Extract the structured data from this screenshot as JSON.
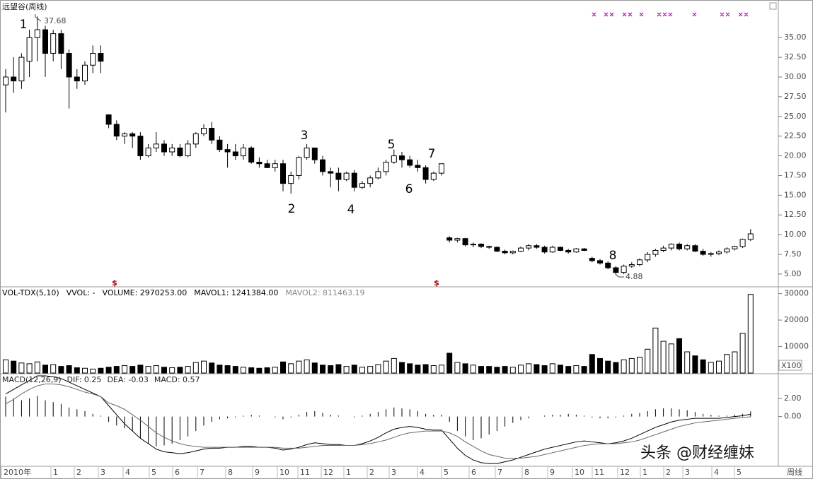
{
  "chart_data": [
    {
      "type": "candlestick",
      "title": "远望谷(周线)",
      "candles": [
        [
          29,
          31,
          25.5,
          30
        ],
        [
          30,
          32.5,
          28,
          29.5
        ],
        [
          29.5,
          33,
          28.5,
          32.5
        ],
        [
          32,
          36,
          30,
          35
        ],
        [
          35,
          37.68,
          32,
          36
        ],
        [
          36,
          36.5,
          30,
          33
        ],
        [
          33,
          36,
          32,
          35.5
        ],
        [
          35.5,
          36,
          31,
          33
        ],
        [
          33,
          33.5,
          26,
          30
        ],
        [
          30,
          31,
          28.5,
          29.5
        ],
        [
          29.5,
          32,
          29,
          31.5
        ],
        [
          31.5,
          34,
          30.5,
          33
        ],
        [
          33,
          34,
          30.5,
          32
        ],
        [
          25.2,
          25.3,
          23.5,
          24
        ],
        [
          24,
          24.5,
          22,
          22.5
        ],
        [
          22.5,
          23,
          21.5,
          22.8
        ],
        [
          22.8,
          23,
          21,
          22.5
        ],
        [
          22.5,
          23,
          19.5,
          20
        ],
        [
          20,
          21.5,
          19.8,
          21
        ],
        [
          21,
          23,
          20.5,
          21.5
        ],
        [
          21.5,
          22,
          20,
          20.5
        ],
        [
          20.5,
          21.5,
          20,
          21
        ],
        [
          21,
          21.5,
          19.8,
          20
        ],
        [
          20,
          22,
          19.8,
          21.5
        ],
        [
          21.5,
          23,
          21,
          22.8
        ],
        [
          22.8,
          24,
          22.5,
          23.5
        ],
        [
          23.5,
          24.3,
          21.5,
          22
        ],
        [
          22,
          22.5,
          20.5,
          20.8
        ],
        [
          20.8,
          21.5,
          18.5,
          20.5
        ],
        [
          20.5,
          21.5,
          19.5,
          20
        ],
        [
          20,
          21.5,
          19.5,
          21
        ],
        [
          21,
          21.2,
          19,
          19.2
        ],
        [
          19.2,
          19.8,
          18.5,
          19
        ],
        [
          19,
          19.5,
          18.5,
          18.5
        ],
        [
          18.5,
          19.5,
          18,
          19
        ],
        [
          19,
          19.5,
          15.5,
          16.5
        ],
        [
          16.5,
          18,
          15.2,
          17.5
        ],
        [
          17.5,
          20,
          17,
          19.8
        ],
        [
          19.8,
          21.5,
          19.5,
          21
        ],
        [
          21,
          21,
          19,
          19.5
        ],
        [
          19.5,
          20,
          17.5,
          18
        ],
        [
          18,
          18.5,
          16,
          17.8
        ],
        [
          17.8,
          18.5,
          15.5,
          17
        ],
        [
          17,
          18,
          16.8,
          17.8
        ],
        [
          17.8,
          18.2,
          15.5,
          16
        ],
        [
          16,
          16.8,
          15.8,
          16.5
        ],
        [
          16.5,
          17.5,
          16,
          17.2
        ],
        [
          17.2,
          18.5,
          17,
          18
        ],
        [
          18,
          19.5,
          17.5,
          19.2
        ],
        [
          19.2,
          20.8,
          19,
          20
        ],
        [
          20,
          20.5,
          18.5,
          19.5
        ],
        [
          19.5,
          20,
          18.5,
          18.8
        ],
        [
          18.8,
          19.5,
          18,
          18.5
        ],
        [
          18.5,
          18.8,
          16.5,
          17
        ],
        [
          17,
          18,
          16.8,
          17.8
        ],
        [
          17.8,
          19,
          17.5,
          19
        ],
        [
          9.6,
          9.8,
          9,
          9.3
        ],
        [
          9.3,
          9.6,
          9,
          9.5
        ],
        [
          9.5,
          9.6,
          8.5,
          8.7
        ],
        [
          8.7,
          9,
          8.4,
          8.8
        ],
        [
          8.8,
          8.9,
          8.3,
          8.5
        ],
        [
          8.5,
          8.6,
          8.2,
          8.4
        ],
        [
          8.4,
          8.5,
          7.8,
          7.9
        ],
        [
          7.9,
          8.1,
          7.5,
          7.7
        ],
        [
          7.7,
          8,
          7.5,
          7.9
        ],
        [
          7.9,
          8.5,
          7.8,
          8.3
        ],
        [
          8.3,
          8.8,
          8,
          8.6
        ],
        [
          8.6,
          8.8,
          8.2,
          8.4
        ],
        [
          8.4,
          8.6,
          7.6,
          7.8
        ],
        [
          7.8,
          8.6,
          7.7,
          8.4
        ],
        [
          8.4,
          8.5,
          7.9,
          8
        ],
        [
          8,
          8.2,
          7.6,
          7.8
        ],
        [
          7.8,
          8.3,
          7.7,
          8.2
        ],
        [
          8.2,
          8.3,
          7.9,
          8
        ],
        [
          7,
          7.2,
          6.5,
          6.7
        ],
        [
          6.7,
          6.9,
          6.2,
          6.4
        ],
        [
          6.4,
          6.6,
          5.6,
          5.8
        ],
        [
          5.8,
          6,
          4.88,
          5.2
        ],
        [
          5.2,
          6.2,
          5,
          6
        ],
        [
          6,
          6.5,
          5.8,
          6.2
        ],
        [
          6.2,
          7,
          6,
          6.8
        ],
        [
          6.8,
          7.8,
          6.5,
          7.5
        ],
        [
          7.5,
          8.2,
          7.2,
          8
        ],
        [
          8,
          8.6,
          7.8,
          8.3
        ],
        [
          8.3,
          8.9,
          8,
          8.8
        ],
        [
          8.8,
          9,
          8,
          8.2
        ],
        [
          8.2,
          8.8,
          8,
          8.6
        ],
        [
          8.6,
          8.8,
          7.8,
          7.9
        ],
        [
          7.9,
          8.2,
          7.3,
          7.5
        ],
        [
          7.5,
          7.8,
          7.2,
          7.6
        ],
        [
          7.6,
          8,
          7.4,
          7.8
        ],
        [
          7.8,
          8.4,
          7.6,
          8.2
        ],
        [
          8.2,
          8.6,
          8,
          8.5
        ],
        [
          8.5,
          9.5,
          8.3,
          9.4
        ],
        [
          9.4,
          10.7,
          9.2,
          10.1
        ]
      ],
      "ylim": [
        3.38,
        39.77
      ],
      "yticks": [
        {
          "value": 5,
          "label": "5.00"
        },
        {
          "value": 7.5,
          "label": "7.50"
        },
        {
          "value": 10,
          "label": "10.00"
        },
        {
          "value": 12.5,
          "label": "12.50"
        },
        {
          "value": 15,
          "label": "15.00"
        },
        {
          "value": 17.5,
          "label": "17.50"
        },
        {
          "value": 20,
          "label": "20.00"
        },
        {
          "value": 22.5,
          "label": "22.50"
        },
        {
          "value": 25,
          "label": "25.00"
        },
        {
          "value": 27.5,
          "label": "27.50"
        },
        {
          "value": 30,
          "label": "30.00"
        },
        {
          "value": 32.5,
          "label": "32.50"
        },
        {
          "value": 35,
          "label": "35.00"
        }
      ],
      "annotations": [
        "1",
        "2",
        "3",
        "4",
        "5",
        "6",
        "7",
        "8"
      ],
      "high_label": "37.68",
      "low_label": "4.88",
      "marker": "$"
    },
    {
      "type": "bar",
      "legend_texts": [
        "VOL-TDX(5,10)",
        "VVOL: -",
        "VOLUME: 2970253.00",
        "MAVOL1: 1241384.00",
        "MAVOL2: 811463.19"
      ],
      "values": [
        5000,
        4500,
        3800,
        3500,
        4200,
        3000,
        3200,
        2500,
        2800,
        2000,
        1800,
        1500,
        1800,
        2200,
        2500,
        2800,
        2500,
        3000,
        2500,
        2800,
        2200,
        2000,
        2200,
        2500,
        4000,
        4500,
        3800,
        3000,
        2800,
        2500,
        2200,
        2000,
        1800,
        2000,
        2200,
        4200,
        3500,
        4500,
        5000,
        3800,
        3000,
        2800,
        3200,
        2500,
        3000,
        2200,
        2500,
        3200,
        4500,
        5500,
        4000,
        3500,
        3000,
        3200,
        2800,
        3000,
        7500,
        4000,
        3500,
        3000,
        2500,
        2500,
        2200,
        2500,
        2200,
        3000,
        3500,
        3200,
        2800,
        3500,
        3000,
        2500,
        2800,
        2500,
        7000,
        5500,
        4500,
        4000,
        5000,
        5500,
        6000,
        9000,
        17000,
        12000,
        11000,
        13000,
        8000,
        6500,
        5000,
        4000,
        4500,
        7000,
        8000,
        15000,
        29700
      ],
      "ylim": [
        0,
        31500
      ],
      "yticks": [
        10000,
        20000,
        30000
      ],
      "unit_label": "X100"
    },
    {
      "type": "macd",
      "legend_texts": [
        "MACD(12,26,9)",
        "DIF: 0.25",
        "DEA: -0.03",
        "MACD: 0.57"
      ],
      "histogram": [
        2.2,
        2.0,
        1.8,
        2.0,
        2.3,
        1.8,
        1.6,
        1.4,
        1.0,
        0.8,
        0.6,
        0.3,
        0.1,
        -0.6,
        -1.0,
        -1.3,
        -1.6,
        -2.4,
        -3.0,
        -3.3,
        -3.2,
        -3.0,
        -2.6,
        -2.2,
        -1.6,
        -1.0,
        -0.6,
        -0.3,
        -0.2,
        -0.1,
        0.1,
        0.2,
        0.1,
        0,
        -0.1,
        -0.3,
        -0.1,
        0.2,
        0.5,
        0.6,
        0.4,
        0.2,
        0.1,
        0,
        -0.1,
        0.1,
        0.3,
        0.5,
        0.8,
        1.0,
        0.9,
        0.8,
        0.6,
        0.3,
        0.2,
        0.2,
        -0.6,
        -1.6,
        -2.2,
        -2.6,
        -2.4,
        -2.0,
        -1.6,
        -1.1,
        -0.7,
        -0.4,
        -0.2,
        0,
        0.1,
        0.2,
        0.2,
        0.3,
        0.2,
        0.1,
        -0.1,
        -0.2,
        -0.2,
        -0.1,
        0.1,
        0.3,
        0.4,
        0.6,
        0.8,
        0.9,
        0.9,
        0.8,
        0.7,
        0.5,
        0.3,
        0.2,
        0.1,
        0.1,
        0.2,
        0.3,
        0.57
      ],
      "series": [
        {
          "name": "DIF",
          "color": "#000000",
          "values": [
            2.5,
            3.0,
            3.5,
            4.0,
            4.5,
            4.5,
            4.4,
            4.2,
            3.8,
            3.4,
            3.0,
            2.6,
            2.2,
            1.2,
            0.2,
            -0.8,
            -1.6,
            -2.4,
            -3.0,
            -3.6,
            -3.9,
            -4.0,
            -4.1,
            -4.0,
            -3.8,
            -3.6,
            -3.5,
            -3.5,
            -3.4,
            -3.4,
            -3.3,
            -3.3,
            -3.4,
            -3.4,
            -3.5,
            -3.7,
            -3.6,
            -3.4,
            -3.1,
            -2.9,
            -3.0,
            -3.1,
            -3.1,
            -3.2,
            -3.2,
            -3.0,
            -2.7,
            -2.3,
            -1.8,
            -1.4,
            -1.2,
            -1.1,
            -1.2,
            -1.4,
            -1.5,
            -1.5,
            -2.5,
            -3.5,
            -4.3,
            -4.8,
            -5.1,
            -5.2,
            -5.2,
            -5.0,
            -4.8,
            -4.5,
            -4.2,
            -3.9,
            -3.6,
            -3.4,
            -3.2,
            -3.0,
            -2.8,
            -2.7,
            -2.8,
            -2.9,
            -3.0,
            -2.9,
            -2.7,
            -2.4,
            -2.0,
            -1.6,
            -1.2,
            -0.9,
            -0.6,
            -0.4,
            -0.3,
            -0.2,
            -0.2,
            -0.2,
            -0.2,
            -0.1,
            0,
            0.1,
            0.25
          ]
        },
        {
          "name": "DEA",
          "color": "#666666",
          "values": [
            1.4,
            1.9,
            2.5,
            3.0,
            3.4,
            3.6,
            3.6,
            3.5,
            3.3,
            3.0,
            2.7,
            2.5,
            2.2,
            1.5,
            1.2,
            0.8,
            0.2,
            -0.4,
            -1.1,
            -1.8,
            -2.3,
            -2.7,
            -3.0,
            -3.2,
            -3.3,
            -3.4,
            -3.4,
            -3.4,
            -3.4,
            -3.4,
            -3.4,
            -3.4,
            -3.4,
            -3.4,
            -3.4,
            -3.5,
            -3.5,
            -3.5,
            -3.4,
            -3.3,
            -3.2,
            -3.2,
            -3.2,
            -3.2,
            -3.2,
            -3.1,
            -3.0,
            -2.8,
            -2.6,
            -2.3,
            -2.0,
            -1.8,
            -1.7,
            -1.6,
            -1.6,
            -1.6,
            -1.8,
            -2.2,
            -2.8,
            -3.3,
            -3.8,
            -4.2,
            -4.4,
            -4.6,
            -4.6,
            -4.6,
            -4.5,
            -4.4,
            -4.2,
            -4.0,
            -3.8,
            -3.6,
            -3.4,
            -3.2,
            -3.1,
            -3.0,
            -3.0,
            -3.0,
            -2.9,
            -2.8,
            -2.6,
            -2.3,
            -2.0,
            -1.7,
            -1.4,
            -1.1,
            -0.9,
            -0.7,
            -0.6,
            -0.5,
            -0.4,
            -0.3,
            -0.2,
            -0.1,
            -0.03
          ]
        }
      ],
      "ylim": [
        -5.5,
        4.5
      ],
      "yticks": [
        {
          "value": 2,
          "label": "2.00"
        },
        {
          "value": 0,
          "label": "0.00"
        }
      ]
    }
  ],
  "time_axis": {
    "labels": [
      "2010年",
      "1",
      "2",
      "3",
      "4",
      "5",
      "6",
      "7",
      "8",
      "9",
      "10",
      "11",
      "12",
      "1",
      "2",
      "3",
      "4",
      "5",
      "6",
      "7",
      "8",
      "9",
      "10",
      "11",
      "12",
      "1",
      "2",
      "3",
      "4",
      "5"
    ],
    "period": "周线"
  },
  "watermark": "头条 @财经缠妹"
}
